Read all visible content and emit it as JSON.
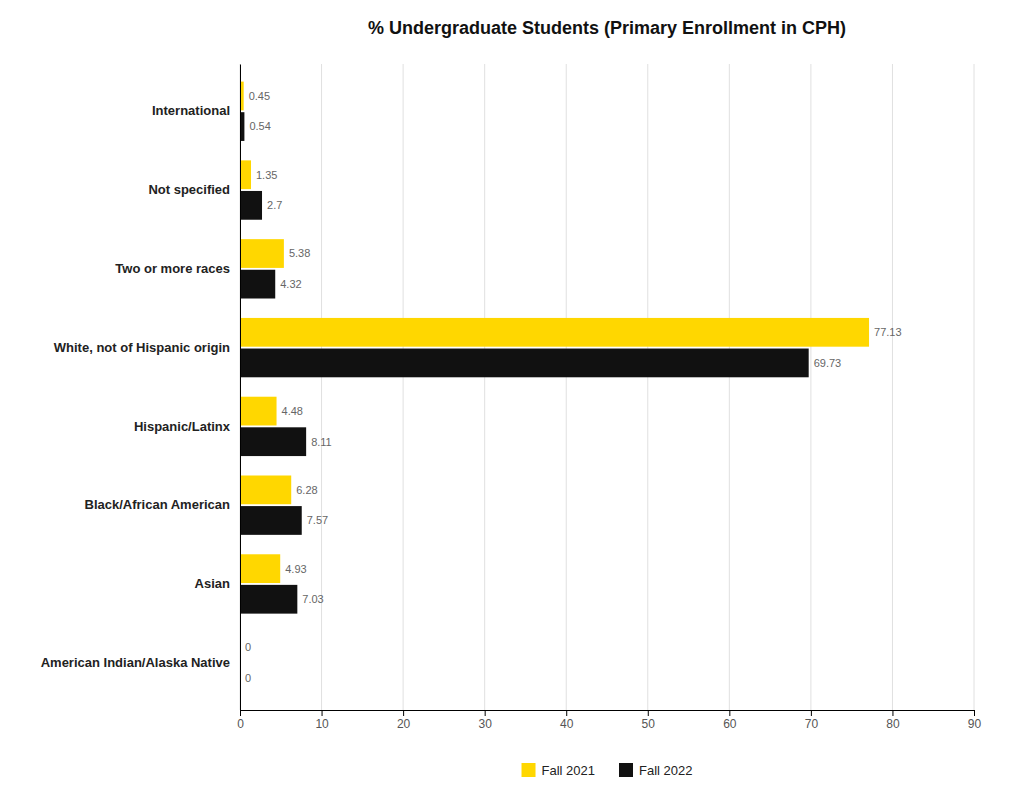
{
  "chart_data": {
    "type": "bar",
    "orientation": "horizontal",
    "title": "% Undergraduate Students (Primary Enrollment in CPH)",
    "categories": [
      "American Indian/Alaska Native",
      "Asian",
      "Black/African American",
      "Hispanic/Latinx",
      "White, not of Hispanic origin",
      "Two or more races",
      "Not specified",
      "International"
    ],
    "series": [
      {
        "name": "Fall 2021",
        "color": "#FFD700",
        "values": [
          0,
          4.93,
          6.28,
          4.48,
          77.13,
          5.38,
          1.35,
          0.45
        ]
      },
      {
        "name": "Fall 2022",
        "color": "#111111",
        "values": [
          0,
          7.03,
          7.57,
          8.11,
          69.73,
          4.32,
          2.7,
          0.54
        ]
      }
    ],
    "xlim": [
      0,
      90
    ],
    "xticks": [
      0,
      10,
      20,
      30,
      40,
      50,
      60,
      70,
      80,
      90
    ],
    "grid": true,
    "legend": "bottom",
    "data_labels": true
  }
}
